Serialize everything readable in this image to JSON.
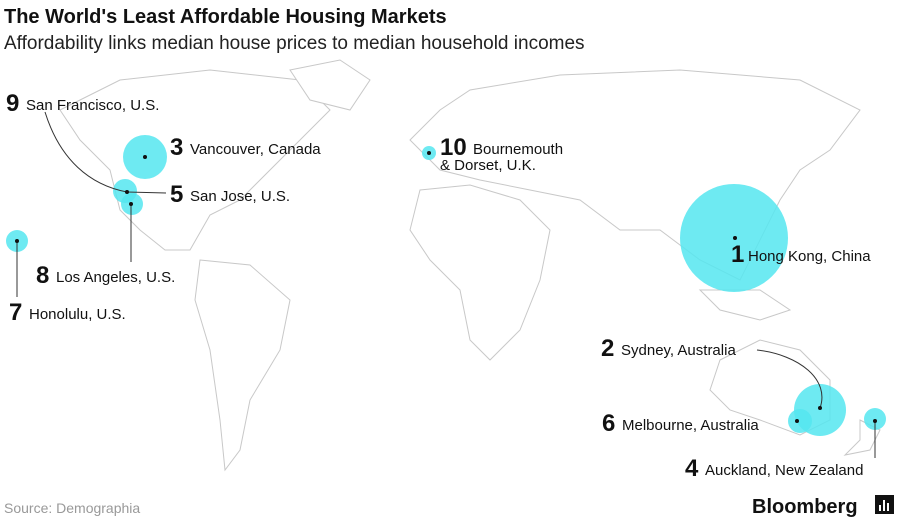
{
  "header": {
    "title": "The World's Least Affordable Housing Markets",
    "subtitle": "Affordability links median house prices to median household incomes"
  },
  "markets": [
    {
      "rank": "1",
      "label": "Hong Kong, China"
    },
    {
      "rank": "2",
      "label": "Sydney, Australia"
    },
    {
      "rank": "3",
      "label": "Vancouver, Canada"
    },
    {
      "rank": "4",
      "label": "Auckland, New Zealand"
    },
    {
      "rank": "5",
      "label": "San Jose, U.S."
    },
    {
      "rank": "6",
      "label": "Melbourne, Australia"
    },
    {
      "rank": "7",
      "label": "Honolulu, U.S."
    },
    {
      "rank": "8",
      "label": "Los Angeles, U.S."
    },
    {
      "rank": "9",
      "label": "San Francisco, U.S."
    },
    {
      "rank": "10",
      "label": [
        "Bournemouth",
        "& Dorset, U.K."
      ]
    }
  ],
  "footer": {
    "source": "Source: Demographia",
    "brand": "Bloomberg"
  }
}
